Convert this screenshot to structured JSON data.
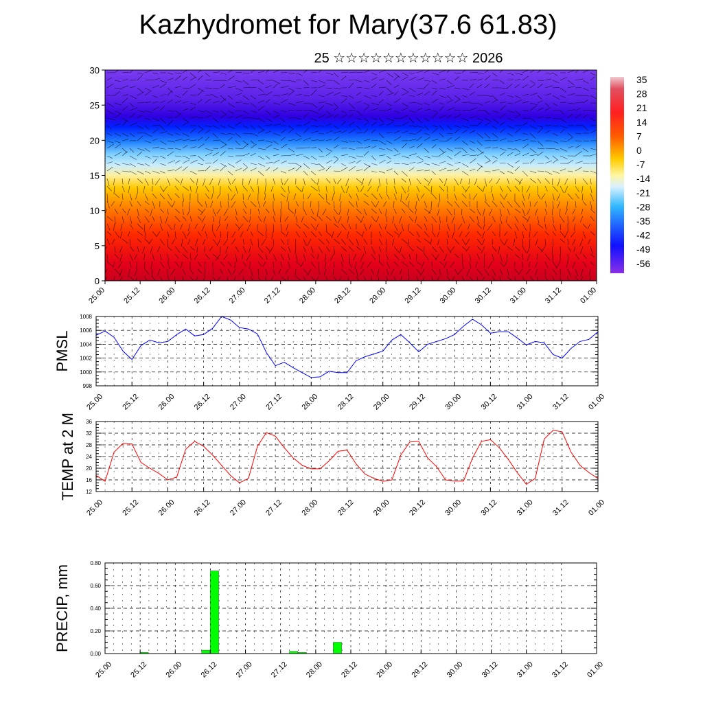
{
  "header": {
    "title": "Kazhydromet for Mary(37.6 61.83)",
    "subtitle": "25 ☆☆☆☆☆☆☆☆☆☆☆ 2026"
  },
  "x_ticks": [
    "25.00",
    "25.12",
    "26.00",
    "26.12",
    "27.00",
    "27.12",
    "28.00",
    "28.12",
    "29.00",
    "29.12",
    "30.00",
    "30.12",
    "31.00",
    "31.12",
    "01.00"
  ],
  "colorbar": {
    "labels": [
      "35",
      "28",
      "21",
      "14",
      "7",
      "0",
      "-7",
      "-14",
      "-21",
      "-28",
      "-35",
      "-42",
      "-49",
      "-56"
    ]
  },
  "chart_data": [
    {
      "type": "heatmap",
      "title": "",
      "xlabel": "",
      "ylabel": "",
      "ylim": [
        0,
        30
      ],
      "yticks": [
        0,
        5,
        10,
        15,
        20,
        25,
        30
      ],
      "colorscale_range": [
        -56,
        35
      ],
      "description_values": "temperature cross-section with wind barbs (height 0-30)"
    },
    {
      "type": "line",
      "ylabel": "PMSL",
      "ylim": [
        998,
        1008
      ],
      "yticks": [
        998,
        1000,
        1002,
        1004,
        1006,
        1008
      ],
      "color": "#0000ff",
      "series": [
        {
          "values": [
            1005.3,
            1005.9,
            1005.0,
            1003.0,
            1001.8,
            1003.8,
            1004.6,
            1004.2,
            1004.4,
            1005.4,
            1006.2,
            1005.2,
            1005.4,
            1006.3,
            1008.0,
            1007.5,
            1006.4,
            1006.2,
            1005.5,
            1002.8,
            1000.9,
            1001.4,
            1000.6,
            999.9,
            999.2,
            999.3,
            1000.1,
            999.9,
            999.9,
            1001.6,
            1002.2,
            1002.6,
            1003.0,
            1004.6,
            1005.4,
            1004.2,
            1002.9,
            1004.0,
            1004.4,
            1004.8,
            1005.4,
            1006.6,
            1007.6,
            1006.8,
            1005.6,
            1005.8,
            1005.8,
            1004.9,
            1003.9,
            1004.4,
            1004.2,
            1002.5,
            1002.0,
            1003.4,
            1004.4,
            1004.7,
            1005.8
          ]
        }
      ]
    },
    {
      "type": "line",
      "ylabel": "TEMP at 2 M",
      "ylim": [
        12,
        36
      ],
      "yticks": [
        12,
        16,
        20,
        24,
        28,
        32,
        36
      ],
      "color": "#ff0000",
      "series": [
        {
          "values": [
            17.5,
            15.5,
            25.5,
            28.5,
            28.3,
            22.0,
            20.0,
            18.2,
            16.0,
            17.0,
            26.5,
            29.2,
            27.5,
            24.5,
            21.0,
            17.5,
            15.0,
            16.5,
            27.5,
            32.2,
            31.0,
            27.0,
            23.5,
            21.0,
            19.8,
            19.8,
            22.5,
            25.8,
            26.2,
            21.5,
            18.0,
            16.5,
            15.5,
            16.0,
            24.5,
            29.0,
            29.2,
            23.5,
            20.5,
            16.0,
            15.6,
            15.6,
            23.5,
            29.2,
            29.8,
            27.0,
            23.0,
            18.5,
            14.5,
            16.5,
            30.0,
            33.0,
            32.5,
            25.5,
            21.0,
            18.5,
            16.5
          ]
        }
      ]
    },
    {
      "type": "bar",
      "ylabel": "PRECIP, mm",
      "ylim": [
        0,
        0.8
      ],
      "yticks": [
        "0.00",
        "0.20",
        "0.40",
        "0.60",
        "0.80"
      ],
      "color": "#00ff00",
      "bar_slot": 3,
      "values": [
        0,
        0,
        0,
        0,
        0.01,
        0,
        0,
        0,
        0,
        0,
        0,
        0.03,
        0.73,
        0,
        0,
        0,
        0,
        0,
        0,
        0,
        0,
        0.02,
        0.01,
        0,
        0,
        0,
        0.1,
        0,
        0,
        0,
        0,
        0,
        0,
        0,
        0,
        0,
        0,
        0,
        0,
        0,
        0,
        0,
        0,
        0,
        0,
        0,
        0,
        0,
        0,
        0,
        0,
        0,
        0,
        0,
        0,
        0
      ]
    }
  ]
}
